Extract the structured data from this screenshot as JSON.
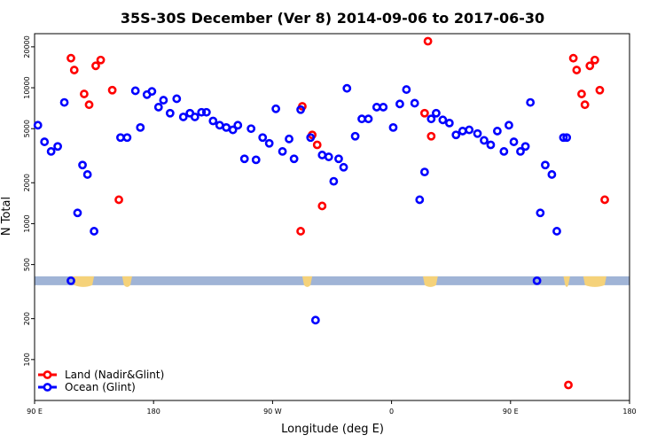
{
  "chart_data": {
    "type": "scatter",
    "title": "35S-30S December (Ver 8)   2014-09-06 to 2017-06-30",
    "xlabel": "Longitude (deg E)",
    "ylabel": "N Total",
    "x_axis": {
      "range": [
        90,
        450
      ],
      "tick_values": [
        90,
        162,
        234,
        306,
        378,
        450
      ],
      "tick_labels": [
        "90 E",
        "180",
        "90 W",
        "0",
        "90 E",
        "180"
      ]
    },
    "y_axis": {
      "scale": "log",
      "range": [
        50,
        25000
      ],
      "tick_values": [
        100,
        200,
        500,
        1000,
        2000,
        5000,
        10000,
        20000
      ],
      "tick_labels": [
        "100",
        "200",
        "500",
        "1000",
        "2000",
        "5000",
        "10000",
        "20000"
      ]
    },
    "legend": {
      "placement": "bottom-left"
    },
    "series": [
      {
        "name": "Land (Nadir&Glint)",
        "color": "#ff0000",
        "x": [
          112,
          114,
          120,
          123,
          127,
          130,
          137,
          141,
          251,
          252,
          258,
          261,
          264,
          326,
          328,
          330,
          413,
          416,
          418,
          421,
          423,
          426,
          429,
          432,
          435
        ],
        "y": [
          16500,
          13500,
          9000,
          7500,
          14500,
          16000,
          9600,
          1500,
          880,
          7300,
          4500,
          3800,
          1350,
          6500,
          22000,
          4400,
          65,
          16500,
          13500,
          9000,
          7500,
          14500,
          16000,
          9600,
          1500
        ]
      },
      {
        "name": "Ocean (Glint)",
        "color": "#0000ff",
        "x": [
          92,
          96,
          100,
          104,
          108,
          112,
          116,
          119,
          122,
          126,
          142,
          146,
          151,
          154,
          158,
          161,
          165,
          168,
          172,
          176,
          180,
          184,
          187,
          191,
          194,
          198,
          202,
          206,
          210,
          213,
          217,
          221,
          224,
          228,
          232,
          236,
          240,
          244,
          247,
          251,
          257,
          260,
          264,
          268,
          271,
          274,
          277,
          279,
          284,
          288,
          292,
          297,
          301,
          307,
          311,
          315,
          320,
          323,
          326,
          330,
          333,
          337,
          341,
          345,
          349,
          353,
          358,
          362,
          366,
          370,
          374,
          377,
          380,
          384,
          387,
          390,
          394,
          396,
          399,
          403,
          406,
          410,
          412
        ],
        "y": [
          5300,
          4000,
          3400,
          3700,
          7800,
          380,
          1200,
          2700,
          2300,
          880,
          4300,
          4300,
          9500,
          5100,
          8900,
          9400,
          7200,
          8100,
          6500,
          8300,
          6100,
          6500,
          6100,
          6600,
          6600,
          5700,
          5300,
          5100,
          4900,
          5300,
          3000,
          5000,
          2950,
          4300,
          3900,
          7000,
          3400,
          4200,
          3000,
          6900,
          4300,
          195,
          3200,
          3100,
          2050,
          3000,
          2600,
          9900,
          4400,
          5900,
          5900,
          7200,
          7200,
          5100,
          7600,
          9700,
          7700,
          1500,
          2400,
          5900,
          6500,
          5800,
          5500,
          4500,
          4800,
          4900,
          4600,
          4100,
          3800,
          4800,
          3400,
          5300,
          4000,
          3400,
          3700,
          7800,
          380,
          1200,
          2700,
          2300,
          880,
          4300,
          4300
        ]
      }
    ],
    "map_strip": {
      "position_y": 380,
      "ocean_color": "#a0b4d6",
      "land_color": "#f5d27a",
      "land_x_ranges": [
        [
          113,
          126
        ],
        [
          143,
          149
        ],
        [
          252,
          258
        ],
        [
          325,
          334
        ],
        [
          410,
          414
        ],
        [
          422,
          436
        ]
      ]
    }
  }
}
